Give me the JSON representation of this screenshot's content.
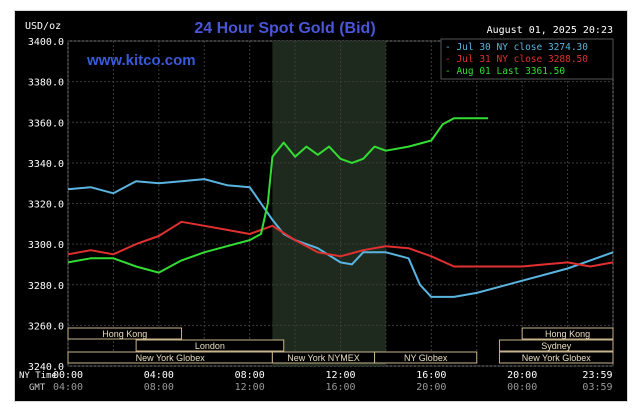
{
  "chart_data": {
    "type": "line",
    "title": "24 Hour Spot Gold (Bid)",
    "watermark": "www.kitco.com",
    "ylabel": "USD/oz",
    "date_label": "August 01, 2025 20:23",
    "ylim": [
      3240,
      3400
    ],
    "y_ticks": [
      "3400.0",
      "3380.0",
      "3360.0",
      "3340.0",
      "3320.0",
      "3300.0",
      "3280.0",
      "3260.0",
      "3240.0"
    ],
    "y_tick_values": [
      3400,
      3380,
      3360,
      3340,
      3320,
      3300,
      3280,
      3260,
      3240
    ],
    "x_row_labels": {
      "ny": "NY Time",
      "gmt": "GMT"
    },
    "x_ticks_ny": [
      "00:00",
      "04:00",
      "08:00",
      "12:00",
      "16:00",
      "20:00",
      "23:59"
    ],
    "x_ticks_gmt": [
      "04:00",
      "08:00",
      "12:00",
      "16:00",
      "20:00",
      "00:00",
      "03:59"
    ],
    "x_tick_hours": [
      0,
      4,
      8,
      12,
      16,
      20,
      23.98
    ],
    "xlim_hours": [
      0,
      24
    ],
    "shaded_session_hours": [
      9,
      14
    ],
    "legend_position": "top-right",
    "series": [
      {
        "name": "Jul 30 NY close 3274.30",
        "color": "#5ab4e0",
        "x": [
          0,
          1,
          2,
          3,
          4,
          5,
          6,
          7,
          8,
          9,
          9.5,
          10,
          11,
          12,
          12.5,
          13,
          14,
          15,
          15.5,
          16,
          17,
          18,
          19,
          20,
          21,
          22,
          23,
          24
        ],
        "values": [
          3327,
          3328,
          3325,
          3331,
          3330,
          3331,
          3332,
          3329,
          3328,
          3312,
          3305,
          3302,
          3298,
          3291,
          3290,
          3296,
          3296,
          3293,
          3280,
          3274,
          3274,
          3276,
          3279,
          3282,
          3285,
          3288,
          3292,
          3296
        ]
      },
      {
        "name": "Jul 31 NY close 3288.50",
        "color": "#e03030",
        "x": [
          0,
          1,
          2,
          3,
          4,
          5,
          6,
          7,
          8,
          9,
          10,
          11,
          12,
          13,
          14,
          15,
          16,
          17,
          18,
          19,
          20,
          21,
          22,
          23,
          24
        ],
        "values": [
          3295,
          3297,
          3295,
          3300,
          3304,
          3311,
          3309,
          3307,
          3305,
          3309,
          3302,
          3296,
          3294,
          3297,
          3299,
          3298,
          3294,
          3289,
          3289,
          3289,
          3289,
          3290,
          3291,
          3289,
          3291
        ]
      },
      {
        "name": "Aug 01 Last 3361.50",
        "color": "#33dd33",
        "x": [
          0,
          1,
          2,
          3,
          4,
          5,
          6,
          7,
          8,
          8.5,
          8.8,
          9,
          9.5,
          10,
          10.5,
          11,
          11.5,
          12,
          12.5,
          13,
          13.5,
          14,
          15,
          16,
          16.5,
          17,
          18,
          18.5
        ],
        "values": [
          3291,
          3293,
          3293,
          3289,
          3286,
          3292,
          3296,
          3299,
          3302,
          3305,
          3320,
          3343,
          3350,
          3343,
          3348,
          3344,
          3348,
          3342,
          3340,
          3342,
          3348,
          3346,
          3348,
          3351,
          3359,
          3362,
          3362,
          3362
        ]
      }
    ],
    "markets": [
      {
        "label": "Hong Kong",
        "start": 0,
        "end": 5,
        "row": 0
      },
      {
        "label": "London",
        "start": 3,
        "end": 9.5,
        "row": 1
      },
      {
        "label": "New York Globex",
        "start": 0,
        "end": 9,
        "row": 2
      },
      {
        "label": "New York NYMEX",
        "start": 9,
        "end": 13.5,
        "row": 2
      },
      {
        "label": "NY Globex",
        "start": 13.5,
        "end": 18,
        "row": 2
      },
      {
        "label": "Hong Kong",
        "start": 20,
        "end": 24,
        "row": 0
      },
      {
        "label": "Sydney",
        "start": 19,
        "end": 24,
        "row": 1
      },
      {
        "label": "New York Globex",
        "start": 19,
        "end": 24,
        "row": 2
      }
    ]
  }
}
